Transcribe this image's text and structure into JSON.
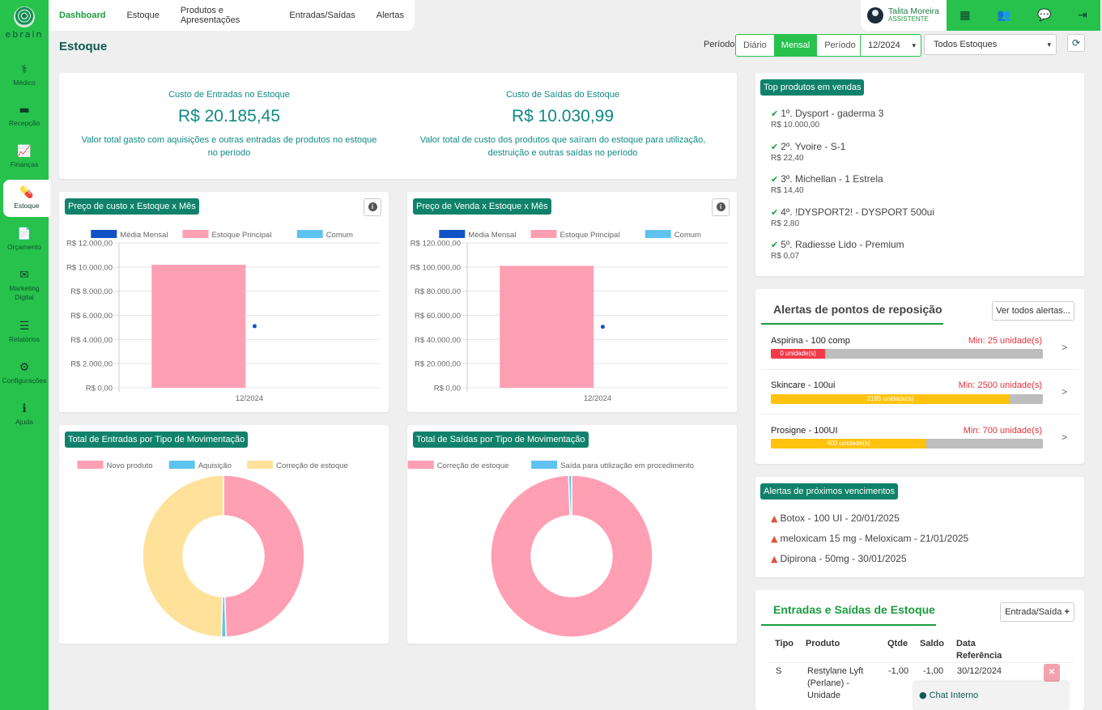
{
  "brand": "ebrain",
  "sidebar": {
    "items": [
      {
        "label": "Médico",
        "icon": "stethoscope-icon",
        "glyph": "⚕"
      },
      {
        "label": "Recepção",
        "icon": "sofa-icon",
        "glyph": "▬"
      },
      {
        "label": "Finanças",
        "icon": "chart-line-icon",
        "glyph": "📈"
      },
      {
        "label": "Estoque",
        "icon": "pills-icon",
        "glyph": "💊"
      },
      {
        "label": "Orçamento",
        "icon": "invoice-icon",
        "glyph": "📄"
      },
      {
        "label": "Marketing Digital",
        "icon": "envelope-icon",
        "glyph": "✉"
      },
      {
        "label": "Relatórios",
        "icon": "list-alt-icon",
        "glyph": "☰"
      },
      {
        "label": "Configurações",
        "icon": "gear-icon",
        "glyph": "⚙"
      },
      {
        "label": "Ajuda",
        "icon": "info-icon",
        "glyph": "ℹ"
      }
    ]
  },
  "topnav": {
    "tabs": [
      "Dashboard",
      "Estoque",
      "Produtos e Apresentações",
      "Entradas/Saídas",
      "Alertas"
    ]
  },
  "user": {
    "name": "Talita Moreira",
    "role": "ASSISTENTE"
  },
  "top_icons": [
    "calendar-icon",
    "users-icon",
    "chat-icon",
    "logout-icon"
  ],
  "page_title": "Estoque",
  "period": {
    "label": "Período",
    "options": [
      "Diário",
      "Mensal",
      "Período"
    ],
    "selected": "Mensal",
    "month": "12/2024",
    "stock": "Todos Estoques"
  },
  "summary": {
    "entries": {
      "title": "Custo de Entradas no Estoque",
      "value": "R$ 20.185,45",
      "desc": "Valor total gasto com aquisições e outras entradas de produtos no estoque no período"
    },
    "exits": {
      "title": "Custo de Saídas do Estoque",
      "value": "R$ 10.030,99",
      "desc": "Valor total de custo dos produtos que saíram do estoque para utilização, destruição e outras saídas no período"
    }
  },
  "charts": {
    "cost_title": "Preço de custo x Estoque x Mês",
    "sale_title": "Preço de Venda x Estoque x Mês",
    "entries_title": "Total de Entradas por Tipo de Movimentação",
    "exits_title": "Total de Saídas por Tipo de Movimentação"
  },
  "chart_data": [
    {
      "type": "bar",
      "title": "Preço de custo x Estoque x Mês",
      "categories": [
        "12/2024"
      ],
      "series": [
        {
          "name": "Média Mensal",
          "color": "#1252c6",
          "values": [
            5100
          ]
        },
        {
          "name": "Estoque Principal",
          "color": "#ff9fb3",
          "values": [
            10185
          ]
        },
        {
          "name": "Comum",
          "color": "#5ec3f0",
          "values": [
            0
          ]
        }
      ],
      "ylim": [
        0,
        12000
      ],
      "yticks": [
        "R$ 0,00",
        "R$ 2.000,00",
        "R$ 4.000,00",
        "R$ 6.000,00",
        "R$ 8.000,00",
        "R$ 10.000,00",
        "R$ 12.000,00"
      ],
      "legend": "top"
    },
    {
      "type": "bar",
      "title": "Preço de Venda x Estoque x Mês",
      "categories": [
        "12/2024"
      ],
      "series": [
        {
          "name": "Média Mensal",
          "color": "#1252c6",
          "values": [
            50500
          ]
        },
        {
          "name": "Estoque Principal",
          "color": "#ff9fb3",
          "values": [
            101000
          ]
        },
        {
          "name": "Comum",
          "color": "#5ec3f0",
          "values": [
            0
          ]
        }
      ],
      "ylim": [
        0,
        120000
      ],
      "yticks": [
        "R$ 0,00",
        "R$ 20.000,00",
        "R$ 40.000,00",
        "R$ 60.000,00",
        "R$ 80.000,00",
        "R$ 100.000,00",
        "R$ 120.000,00"
      ],
      "legend": "top"
    },
    {
      "type": "pie",
      "title": "Total de Entradas por Tipo de Movimentação",
      "labels": [
        "Novo produto",
        "Aquisição",
        "Correção de estoque"
      ],
      "colors": [
        "#ff9fb3",
        "#5ec3f0",
        "#ffe19a"
      ],
      "values": [
        49.5,
        0.9,
        49.6
      ],
      "legend": "top"
    },
    {
      "type": "pie",
      "title": "Total de Saídas por Tipo de Movimentação",
      "labels": [
        "Correção de estoque",
        "Saída para utilização em procedimento"
      ],
      "colors": [
        "#ff9fb3",
        "#5ec3f0"
      ],
      "values": [
        99.4,
        0.6
      ],
      "legend": "top"
    }
  ],
  "top_products": {
    "title": "Top produtos em vendas",
    "items": [
      {
        "name": "1º. Dysport - gaderma 3",
        "value": "R$ 10.000,00"
      },
      {
        "name": "2º. Yvoire - S-1",
        "value": "R$ 22,40"
      },
      {
        "name": "3º. Michellan - 1 Estrela",
        "value": "R$ 14,40"
      },
      {
        "name": "4º. !DYSPORT2! - DYSPORT 500ui",
        "value": "R$ 2,80"
      },
      {
        "name": "5º. Radiesse Lido - Premium",
        "value": "R$ 0,07"
      }
    ]
  },
  "reorder_alerts": {
    "title": "Alertas de pontos de reposição",
    "button": "Ver todos alertas...",
    "items": [
      {
        "name": "Aspirina - 100 comp",
        "min": "Min: 25 unidade(s)",
        "level": "0 unidade(s)",
        "fraction": 0.2,
        "color": "#ef3b47"
      },
      {
        "name": "Skincare - 100ui",
        "min": "Min: 2500 unidade(s)",
        "level": "2195 unidade(s)",
        "fraction": 0.878,
        "color": "#ffc20e"
      },
      {
        "name": "Prosigne - 100UI",
        "min": "Min: 700 unidade(s)",
        "level": "400 unidade(s)",
        "fraction": 0.571,
        "color": "#ffc20e"
      }
    ]
  },
  "expiry_alerts": {
    "title": "Alertas de próximos vencimentos",
    "items": [
      "Botox - 100 UI - 20/01/2025",
      "meloxicam 15 mg - Meloxicam - 21/01/2025",
      "Dipirona - 50mg - 30/01/2025"
    ]
  },
  "movements": {
    "title": "Entradas e Saídas de Estoque",
    "button": "Entrada/Saída",
    "headers": {
      "tipo": "Tipo",
      "produto": "Produto",
      "qtde": "Qtde",
      "saldo": "Saldo",
      "data_1": "Data",
      "data_2": "Referência"
    },
    "rows": [
      {
        "tipo": "S",
        "produto_1": "Restylane Lyft",
        "produto_2": "(Perlane) -",
        "produto_3": "Unidade",
        "qtde": "-1,00",
        "saldo": "-1,00",
        "data": "30/12/2024"
      }
    ]
  },
  "chat": {
    "label": "Chat Interno"
  }
}
